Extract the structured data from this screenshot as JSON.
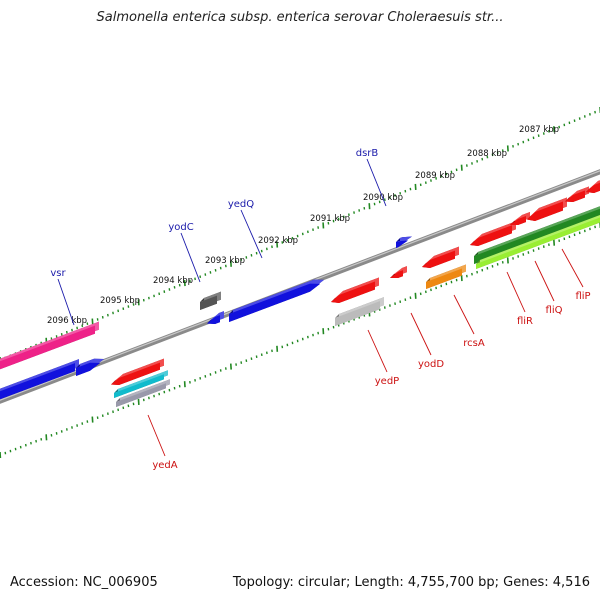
{
  "title": "Salmonella enterica subsp. enterica serovar Choleraesuis str...",
  "footer": {
    "accession": "Accession: NC_006905",
    "topology": "Topology: circular; Length: 4,755,700 bp; Genes: 4,516"
  },
  "colors": {
    "backbone": "#8a8a8a",
    "ticks": "#228822",
    "forward_label": "#1a1aaa",
    "reverse_label": "#cc1111"
  },
  "scale_labels": [
    {
      "text": "2096 kbp"
    },
    {
      "text": "2095 kbp"
    },
    {
      "text": "2094 kbp"
    },
    {
      "text": "2093 kbp"
    },
    {
      "text": "2092 kbp"
    },
    {
      "text": "2091 kbp"
    },
    {
      "text": "2090 kbp"
    },
    {
      "text": "2089 kbp"
    },
    {
      "text": "2088 kbp"
    },
    {
      "text": "2087 kbp"
    }
  ],
  "gene_labels": [
    {
      "name": "vsr",
      "strand": "forward"
    },
    {
      "name": "yodC",
      "strand": "forward"
    },
    {
      "name": "yedQ",
      "strand": "forward"
    },
    {
      "name": "dsrB",
      "strand": "forward"
    },
    {
      "name": "yedA",
      "strand": "reverse"
    },
    {
      "name": "yedP",
      "strand": "reverse"
    },
    {
      "name": "yodD",
      "strand": "reverse"
    },
    {
      "name": "rcsA",
      "strand": "reverse"
    },
    {
      "name": "fliR",
      "strand": "reverse"
    },
    {
      "name": "fliQ",
      "strand": "reverse"
    },
    {
      "name": "fliP",
      "strand": "reverse"
    }
  ],
  "features": [
    {
      "name": "feature-pink",
      "color": "#ee2288"
    },
    {
      "name": "feature-blue-left",
      "color": "#1111dd"
    },
    {
      "name": "feature-vsr",
      "color": "#1111dd"
    },
    {
      "name": "feature-yedA-red",
      "color": "#ee1111"
    },
    {
      "name": "feature-yedA-cyan",
      "color": "#11bbcc"
    },
    {
      "name": "feature-yedA-gray",
      "color": "#9999aa"
    },
    {
      "name": "feature-yodC-gray",
      "color": "#555555"
    },
    {
      "name": "feature-yodC-blue",
      "color": "#1111dd"
    },
    {
      "name": "feature-yedQ",
      "color": "#1111dd"
    },
    {
      "name": "feature-dsrB",
      "color": "#1111dd"
    },
    {
      "name": "feature-yedP-red",
      "color": "#ee1111"
    },
    {
      "name": "feature-yedP-gray",
      "color": "#bbbbbb"
    },
    {
      "name": "feature-yodD",
      "color": "#ee1111"
    },
    {
      "name": "feature-rcsA-red",
      "color": "#ee1111"
    },
    {
      "name": "feature-rcsA-orange",
      "color": "#ee8811"
    },
    {
      "name": "feature-fli-red-1",
      "color": "#ee1111"
    },
    {
      "name": "feature-fli-red-2",
      "color": "#ee1111"
    },
    {
      "name": "feature-fli-red-3",
      "color": "#ee1111"
    },
    {
      "name": "feature-fli-red-4",
      "color": "#ee1111"
    },
    {
      "name": "feature-fli-red-5",
      "color": "#ee1111"
    },
    {
      "name": "feature-fli-green",
      "color": "#228822"
    },
    {
      "name": "feature-fli-lightgreen",
      "color": "#99ee33"
    }
  ]
}
